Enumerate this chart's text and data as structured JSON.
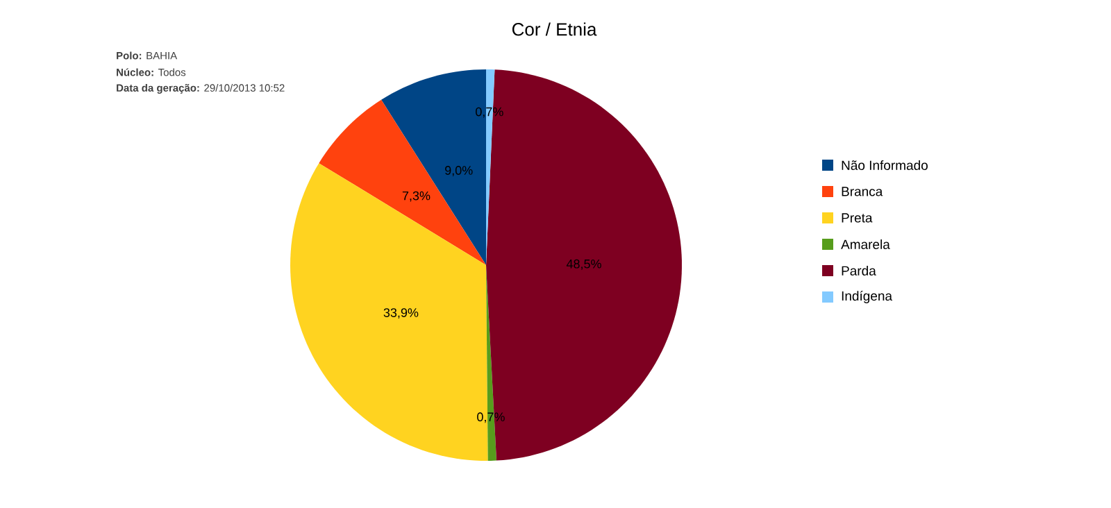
{
  "chart_data": {
    "type": "pie",
    "title": "Cor / Etnia",
    "categories": [
      "Não Informado",
      "Branca",
      "Preta",
      "Amarela",
      "Parda",
      "Indígena"
    ],
    "values": [
      9.0,
      7.3,
      33.9,
      0.7,
      48.5,
      0.7
    ],
    "value_labels": [
      "9,0%",
      "7,3%",
      "33,9%",
      "0,7%",
      "48,5%",
      "0,7%"
    ],
    "colors": [
      "#004586",
      "#ff420e",
      "#ffd320",
      "#579d1c",
      "#7e0021",
      "#83caff"
    ],
    "legend": "right",
    "annotations": [
      "**Polo:** BAHIA",
      "**Núcleo:** Todos",
      "**Data da geração:** 29/10/2013 10:52"
    ]
  }
}
